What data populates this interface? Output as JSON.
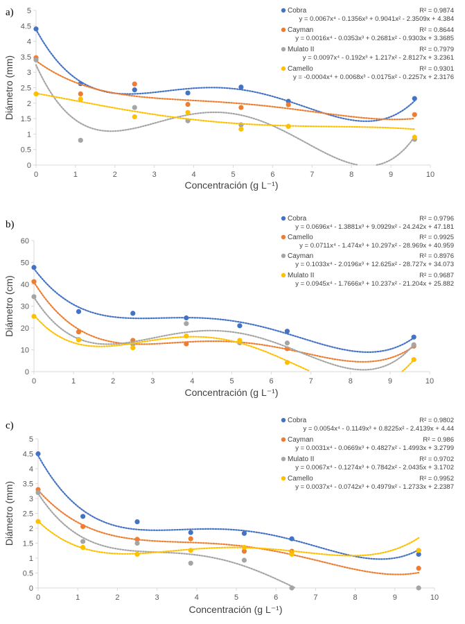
{
  "chart_data": [
    {
      "type": "scatter",
      "panel_label": "a)",
      "xlabel": "Concentración (g L⁻¹)",
      "ylabel": "Diámetro (mm)",
      "xlim": [
        0,
        10
      ],
      "ylim": [
        0,
        5
      ],
      "xticks": [
        "0",
        "1",
        "2",
        "3",
        "4",
        "5",
        "6",
        "7",
        "8",
        "9",
        "10"
      ],
      "yticks": [
        "0",
        "0.5",
        "1",
        "1.5",
        "2",
        "2.5",
        "3",
        "3.5",
        "4",
        "4.5",
        "5"
      ],
      "grid": false,
      "legend": "top-right",
      "trendline": "polynomial order 4 (dotted)",
      "x": [
        0,
        1.13,
        2.5,
        3.85,
        5.2,
        6.4,
        9.6
      ],
      "series": [
        {
          "name": "Cobra",
          "color": "#4472C4",
          "values": [
            4.4,
            2.63,
            2.43,
            2.33,
            2.52,
            2.06,
            2.15
          ],
          "coef": [
            4.384,
            -2.3509,
            0.9041,
            -0.1356,
            0.0067
          ],
          "equation": "y = 0.0067x⁴ - 0.1356x³ + 0.9041x² - 2.3509x + 4.384",
          "r2": "R² = 0.9874"
        },
        {
          "name": "Cayman",
          "color": "#ED7D31",
          "values": [
            3.47,
            2.3,
            2.62,
            1.96,
            1.86,
            1.95,
            1.63
          ],
          "coef": [
            3.3685,
            -0.9303,
            0.2681,
            -0.0353,
            0.0016
          ],
          "equation": "y = 0.0016x⁴ - 0.0353x³ + 0.2681x² - 0.9303x + 3.3685",
          "r2": "R² = 0.8644"
        },
        {
          "name": "Mulato II",
          "color": "#A5A5A5",
          "values": [
            3.4,
            0.8,
            1.86,
            1.43,
            1.3,
            1.25,
            0.83
          ],
          "coef": [
            3.2361,
            -2.8127,
            1.217,
            -0.192,
            0.0097
          ],
          "equation": "y = 0.0097x⁴ - 0.192x³ + 1.217x² - 2.8127x + 3.2361",
          "r2": "R² = 0.7979"
        },
        {
          "name": "Camello",
          "color": "#FFC000",
          "values": [
            2.3,
            2.13,
            1.56,
            1.7,
            1.16,
            1.25,
            0.9
          ],
          "coef": [
            2.3176,
            -0.2257,
            -0.0175,
            0.0068,
            -0.0004
          ],
          "equation": "y = -0.0004x⁴ + 0.0068x³ - 0.0175x² - 0.2257x + 2.3176",
          "r2": "R² = 0.9301"
        }
      ]
    },
    {
      "type": "scatter",
      "panel_label": "b)",
      "xlabel": "Concentración (g L⁻¹)",
      "ylabel": "Diámetro (cm)",
      "xlim": [
        0,
        10
      ],
      "ylim": [
        0,
        60
      ],
      "xticks": [
        "0",
        "1",
        "2",
        "3",
        "4",
        "5",
        "6",
        "7",
        "8",
        "9",
        "10"
      ],
      "yticks": [
        "0",
        "10",
        "20",
        "30",
        "40",
        "50",
        "60"
      ],
      "grid": false,
      "legend": "top-right",
      "trendline": "polynomial order 4 (dotted)",
      "x": [
        0,
        1.13,
        2.5,
        3.85,
        5.2,
        6.4,
        9.6
      ],
      "series": [
        {
          "name": "Cobra",
          "color": "#4472C4",
          "values": [
            47.7,
            27.5,
            26.7,
            24.6,
            21,
            18.5,
            15.8
          ],
          "coef": [
            47.181,
            -24.242,
            9.0929,
            -1.3881,
            0.0696
          ],
          "equation": "y = 0.0696x⁴ - 1.3881x³ + 9.0929x² - 24.242x + 47.181",
          "r2": "R² = 0.9796"
        },
        {
          "name": "Camello",
          "color": "#ED7D31",
          "values": [
            41.2,
            18.2,
            14.3,
            12.7,
            13.3,
            10.5,
            11.7
          ],
          "coef": [
            40.959,
            -28.969,
            10.297,
            -1.474,
            0.0711
          ],
          "equation": "y = 0.0711x⁴ - 1.474x³ + 10.297x² - 28.969x + 40.959",
          "r2": "R² = 0.9925"
        },
        {
          "name": "Cayman",
          "color": "#A5A5A5",
          "values": [
            34.3,
            14.7,
            12.5,
            22,
            13.2,
            13.1,
            12.3
          ],
          "coef": [
            34.073,
            -28.727,
            12.625,
            -2.0196,
            0.1033
          ],
          "equation": "y = 0.1033x⁴ - 2.0196x³ + 12.625x² - 28.727x + 34.073",
          "r2": "R² = 0.8976"
        },
        {
          "name": "Mulato II",
          "color": "#FFC000",
          "values": [
            25.3,
            14.5,
            10.9,
            16.3,
            14.3,
            4.2,
            5.5
          ],
          "coef": [
            25.882,
            -21.204,
            10.237,
            -1.7666,
            0.0945
          ],
          "equation": "y = 0.0945x⁴ - 1.7666x³ + 10.237x² - 21.204x + 25.882",
          "r2": "R² = 0.9687"
        }
      ]
    },
    {
      "type": "scatter",
      "panel_label": "c)",
      "xlabel": "Concentración (g L⁻¹)",
      "ylabel": "Diámetro (mm)",
      "xlim": [
        0,
        10
      ],
      "ylim": [
        0,
        5
      ],
      "xticks": [
        "0",
        "1",
        "2",
        "3",
        "4",
        "5",
        "6",
        "7",
        "8",
        "9",
        "10"
      ],
      "yticks": [
        "0",
        "0.5",
        "1",
        "1.5",
        "2",
        "2.5",
        "3",
        "3.5",
        "4",
        "4.5",
        "5"
      ],
      "grid": false,
      "legend": "top-right",
      "trendline": "polynomial order 4 (dotted)",
      "x": [
        0,
        1.13,
        2.5,
        3.85,
        5.2,
        6.4,
        9.6
      ],
      "series": [
        {
          "name": "Cobra",
          "color": "#4472C4",
          "values": [
            4.5,
            2.4,
            2.22,
            1.86,
            1.83,
            1.65,
            1.13
          ],
          "coef": [
            4.44,
            -2.4139,
            0.8225,
            -0.1149,
            0.0054
          ],
          "equation": "y = 0.0054x⁴ - 0.1149x³ + 0.8225x² - 2.4139x + 4.44",
          "r2": "R² = 0.9802"
        },
        {
          "name": "Cayman",
          "color": "#ED7D31",
          "values": [
            3.3,
            2.06,
            1.63,
            1.65,
            1.23,
            1.23,
            0.66
          ],
          "coef": [
            3.2799,
            -1.4993,
            0.4827,
            -0.0669,
            0.0031
          ],
          "equation": "y = 0.0031x⁴ - 0.0669x³ + 0.4827x² - 1.4993x + 3.2799",
          "r2": "R² = 0.986"
        },
        {
          "name": "Mulato II",
          "color": "#A5A5A5",
          "values": [
            3.2,
            1.56,
            1.5,
            0.83,
            0.93,
            0,
            0
          ],
          "coef": [
            3.1702,
            -2.0435,
            0.7842,
            -0.1274,
            0.0067
          ],
          "equation": "y = 0.0067x⁴ - 0.1274x³ + 0.7842x² - 2.0435x + 3.1702",
          "r2": "R² = 0.9702"
        },
        {
          "name": "Camello",
          "color": "#FFC000",
          "values": [
            2.23,
            1.36,
            1.13,
            1.26,
            1.36,
            1.13,
            1.26
          ],
          "coef": [
            2.2387,
            -1.2733,
            0.4979,
            -0.0742,
            0.0037
          ],
          "equation": "y = 0.0037x⁴ - 0.0742x³ + 0.4979x² - 1.2733x + 2.2387",
          "r2": "R² = 0.9952"
        }
      ]
    }
  ]
}
